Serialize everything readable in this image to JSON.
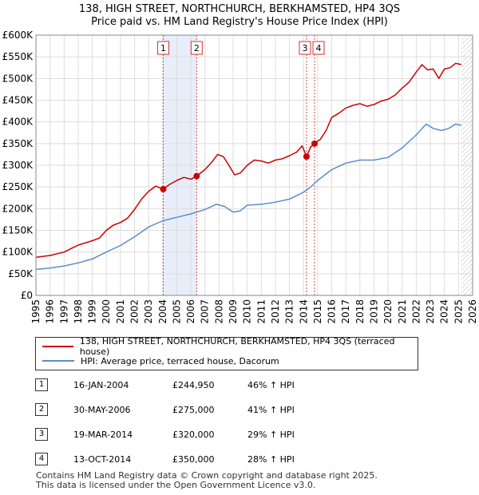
{
  "title": {
    "line1": "138, HIGH STREET, NORTHCHURCH, BERKHAMSTED, HP4 3QS",
    "line2": "Price paid vs. HM Land Registry's House Price Index (HPI)"
  },
  "colors": {
    "property": "#cc0000",
    "hpi": "#5b8ccc",
    "shade": "#e8eef9",
    "grid": "#dddddd"
  },
  "legend": {
    "property_label": "138, HIGH STREET, NORTHCHURCH, BERKHAMSTED, HP4 3QS (terraced house)",
    "hpi_label": "HPI: Average price, terraced house, Dacorum"
  },
  "sales": [
    {
      "num": "1",
      "date": "16-JAN-2004",
      "price": "£244,950",
      "hpi": "46% ↑ HPI"
    },
    {
      "num": "2",
      "date": "30-MAY-2006",
      "price": "£275,000",
      "hpi": "41% ↑ HPI"
    },
    {
      "num": "3",
      "date": "19-MAR-2014",
      "price": "£320,000",
      "hpi": "29% ↑ HPI"
    },
    {
      "num": "4",
      "date": "13-OCT-2014",
      "price": "£350,000",
      "hpi": "28% ↑ HPI"
    }
  ],
  "footer": {
    "line1": "Contains HM Land Registry data © Crown copyright and database right 2025.",
    "line2": "This data is licensed under the Open Government Licence v3.0."
  },
  "chart_data": {
    "type": "line",
    "xlim": [
      1995,
      2026
    ],
    "ylim": [
      0,
      600000
    ],
    "xticks": [
      1995,
      1996,
      1997,
      1998,
      1999,
      2000,
      2001,
      2002,
      2003,
      2004,
      2005,
      2006,
      2007,
      2008,
      2009,
      2010,
      2011,
      2012,
      2013,
      2014,
      2015,
      2016,
      2017,
      2018,
      2019,
      2020,
      2021,
      2022,
      2023,
      2024,
      2025,
      2026
    ],
    "yticks": [
      {
        "value": 0,
        "label": "£0"
      },
      {
        "value": 50000,
        "label": "£50K"
      },
      {
        "value": 100000,
        "label": "£100K"
      },
      {
        "value": 150000,
        "label": "£150K"
      },
      {
        "value": 200000,
        "label": "£200K"
      },
      {
        "value": 250000,
        "label": "£250K"
      },
      {
        "value": 300000,
        "label": "£300K"
      },
      {
        "value": 350000,
        "label": "£350K"
      },
      {
        "value": 400000,
        "label": "£400K"
      },
      {
        "value": 450000,
        "label": "£450K"
      },
      {
        "value": 500000,
        "label": "£500K"
      },
      {
        "value": 550000,
        "label": "£550K"
      },
      {
        "value": 600000,
        "label": "£600K"
      }
    ],
    "shaded_range": [
      2004.04,
      2006.41
    ],
    "hatch_from": 2025.2,
    "sale_markers": [
      {
        "label": "1",
        "x": 2004.04,
        "y": 244950
      },
      {
        "label": "2",
        "x": 2006.41,
        "y": 275000
      },
      {
        "label": "3",
        "x": 2014.21,
        "y": 320000
      },
      {
        "label": "4",
        "x": 2014.78,
        "y": 350000
      }
    ],
    "series": [
      {
        "name": "138, HIGH STREET, NORTHCHURCH, BERKHAMSTED, HP4 3QS (terraced house)",
        "color": "#cc0000",
        "points": [
          [
            1995.0,
            88000
          ],
          [
            1996.0,
            92000
          ],
          [
            1997.0,
            100000
          ],
          [
            1997.5,
            108000
          ],
          [
            1998.0,
            116000
          ],
          [
            1999.0,
            126000
          ],
          [
            1999.5,
            132000
          ],
          [
            2000.0,
            150000
          ],
          [
            2000.5,
            162000
          ],
          [
            2001.0,
            168000
          ],
          [
            2001.5,
            178000
          ],
          [
            2002.0,
            198000
          ],
          [
            2002.5,
            222000
          ],
          [
            2003.0,
            240000
          ],
          [
            2003.5,
            252000
          ],
          [
            2004.04,
            244950
          ],
          [
            2004.5,
            256000
          ],
          [
            2005.0,
            265000
          ],
          [
            2005.5,
            272000
          ],
          [
            2006.0,
            268000
          ],
          [
            2006.41,
            275000
          ],
          [
            2007.0,
            290000
          ],
          [
            2007.5,
            308000
          ],
          [
            2007.9,
            325000
          ],
          [
            2008.3,
            320000
          ],
          [
            2008.7,
            300000
          ],
          [
            2009.1,
            278000
          ],
          [
            2009.5,
            282000
          ],
          [
            2010.0,
            300000
          ],
          [
            2010.5,
            312000
          ],
          [
            2011.0,
            310000
          ],
          [
            2011.5,
            305000
          ],
          [
            2012.0,
            312000
          ],
          [
            2012.5,
            315000
          ],
          [
            2013.0,
            322000
          ],
          [
            2013.5,
            330000
          ],
          [
            2013.9,
            345000
          ],
          [
            2014.21,
            320000
          ],
          [
            2014.5,
            342000
          ],
          [
            2014.78,
            350000
          ],
          [
            2015.2,
            360000
          ],
          [
            2015.6,
            380000
          ],
          [
            2016.0,
            410000
          ],
          [
            2016.5,
            420000
          ],
          [
            2017.0,
            432000
          ],
          [
            2017.5,
            438000
          ],
          [
            2018.0,
            442000
          ],
          [
            2018.5,
            436000
          ],
          [
            2019.0,
            440000
          ],
          [
            2019.5,
            448000
          ],
          [
            2020.0,
            452000
          ],
          [
            2020.5,
            462000
          ],
          [
            2021.0,
            478000
          ],
          [
            2021.5,
            492000
          ],
          [
            2022.0,
            515000
          ],
          [
            2022.4,
            532000
          ],
          [
            2022.8,
            520000
          ],
          [
            2023.2,
            522000
          ],
          [
            2023.6,
            500000
          ],
          [
            2024.0,
            522000
          ],
          [
            2024.4,
            525000
          ],
          [
            2024.8,
            535000
          ],
          [
            2025.2,
            532000
          ]
        ]
      },
      {
        "name": "HPI: Average price, terraced house, Dacorum",
        "color": "#5b8ccc",
        "points": [
          [
            1995.0,
            60000
          ],
          [
            1996.0,
            63000
          ],
          [
            1997.0,
            68000
          ],
          [
            1998.0,
            75000
          ],
          [
            1999.0,
            84000
          ],
          [
            2000.0,
            100000
          ],
          [
            2001.0,
            115000
          ],
          [
            2002.0,
            135000
          ],
          [
            2003.0,
            158000
          ],
          [
            2004.0,
            172000
          ],
          [
            2005.0,
            180000
          ],
          [
            2006.0,
            188000
          ],
          [
            2007.0,
            198000
          ],
          [
            2007.8,
            210000
          ],
          [
            2008.4,
            205000
          ],
          [
            2009.0,
            192000
          ],
          [
            2009.5,
            195000
          ],
          [
            2010.0,
            208000
          ],
          [
            2011.0,
            210000
          ],
          [
            2012.0,
            215000
          ],
          [
            2013.0,
            222000
          ],
          [
            2014.0,
            238000
          ],
          [
            2014.5,
            250000
          ],
          [
            2015.0,
            265000
          ],
          [
            2016.0,
            290000
          ],
          [
            2017.0,
            305000
          ],
          [
            2018.0,
            312000
          ],
          [
            2019.0,
            312000
          ],
          [
            2020.0,
            318000
          ],
          [
            2021.0,
            340000
          ],
          [
            2022.0,
            370000
          ],
          [
            2022.7,
            395000
          ],
          [
            2023.2,
            385000
          ],
          [
            2023.8,
            380000
          ],
          [
            2024.3,
            385000
          ],
          [
            2024.8,
            395000
          ],
          [
            2025.2,
            392000
          ]
        ]
      }
    ]
  }
}
